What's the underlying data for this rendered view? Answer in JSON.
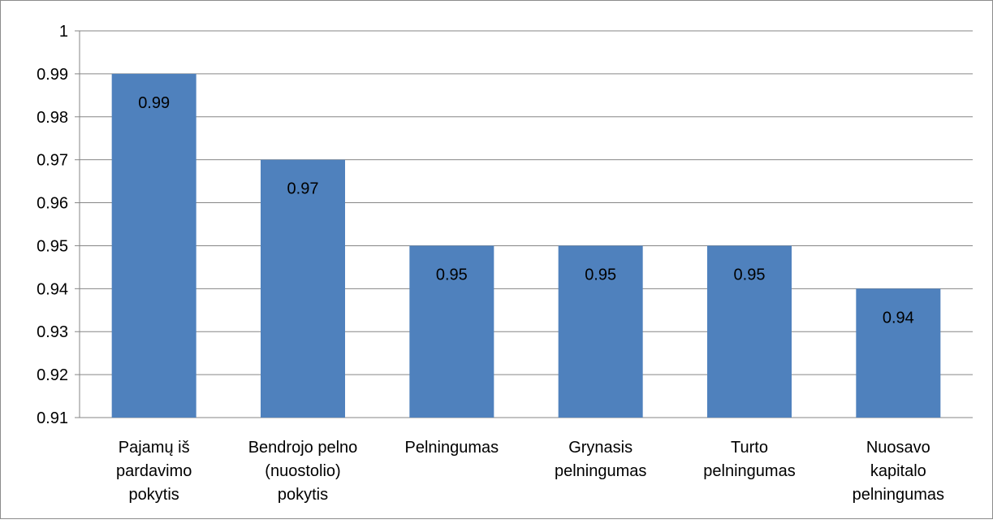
{
  "chart_data": {
    "type": "bar",
    "categories": [
      [
        "Pajamų iš",
        "pardavimo",
        "pokytis"
      ],
      [
        "Bendrojo pelno",
        "(nuostolio)",
        "pokytis"
      ],
      [
        "Pelningumas"
      ],
      [
        "Grynasis",
        "pelningumas"
      ],
      [
        "Turto",
        "pelningumas"
      ],
      [
        "Nuosavo",
        "kapitalo",
        "pelningumas"
      ]
    ],
    "values": [
      0.99,
      0.97,
      0.95,
      0.95,
      0.95,
      0.94
    ],
    "data_labels": [
      "0.99",
      "0.97",
      "0.95",
      "0.95",
      "0.95",
      "0.94"
    ],
    "y_ticks": [
      "0.91",
      "0.92",
      "0.93",
      "0.94",
      "0.95",
      "0.96",
      "0.97",
      "0.98",
      "0.99",
      "1"
    ],
    "ylim": [
      0.91,
      1
    ],
    "grid": true,
    "legend": false,
    "title": "",
    "xlabel": "",
    "ylabel": "",
    "colors": {
      "bar": "#4f81bd",
      "grid": "#868686",
      "frame": "#8c8c8c"
    }
  }
}
